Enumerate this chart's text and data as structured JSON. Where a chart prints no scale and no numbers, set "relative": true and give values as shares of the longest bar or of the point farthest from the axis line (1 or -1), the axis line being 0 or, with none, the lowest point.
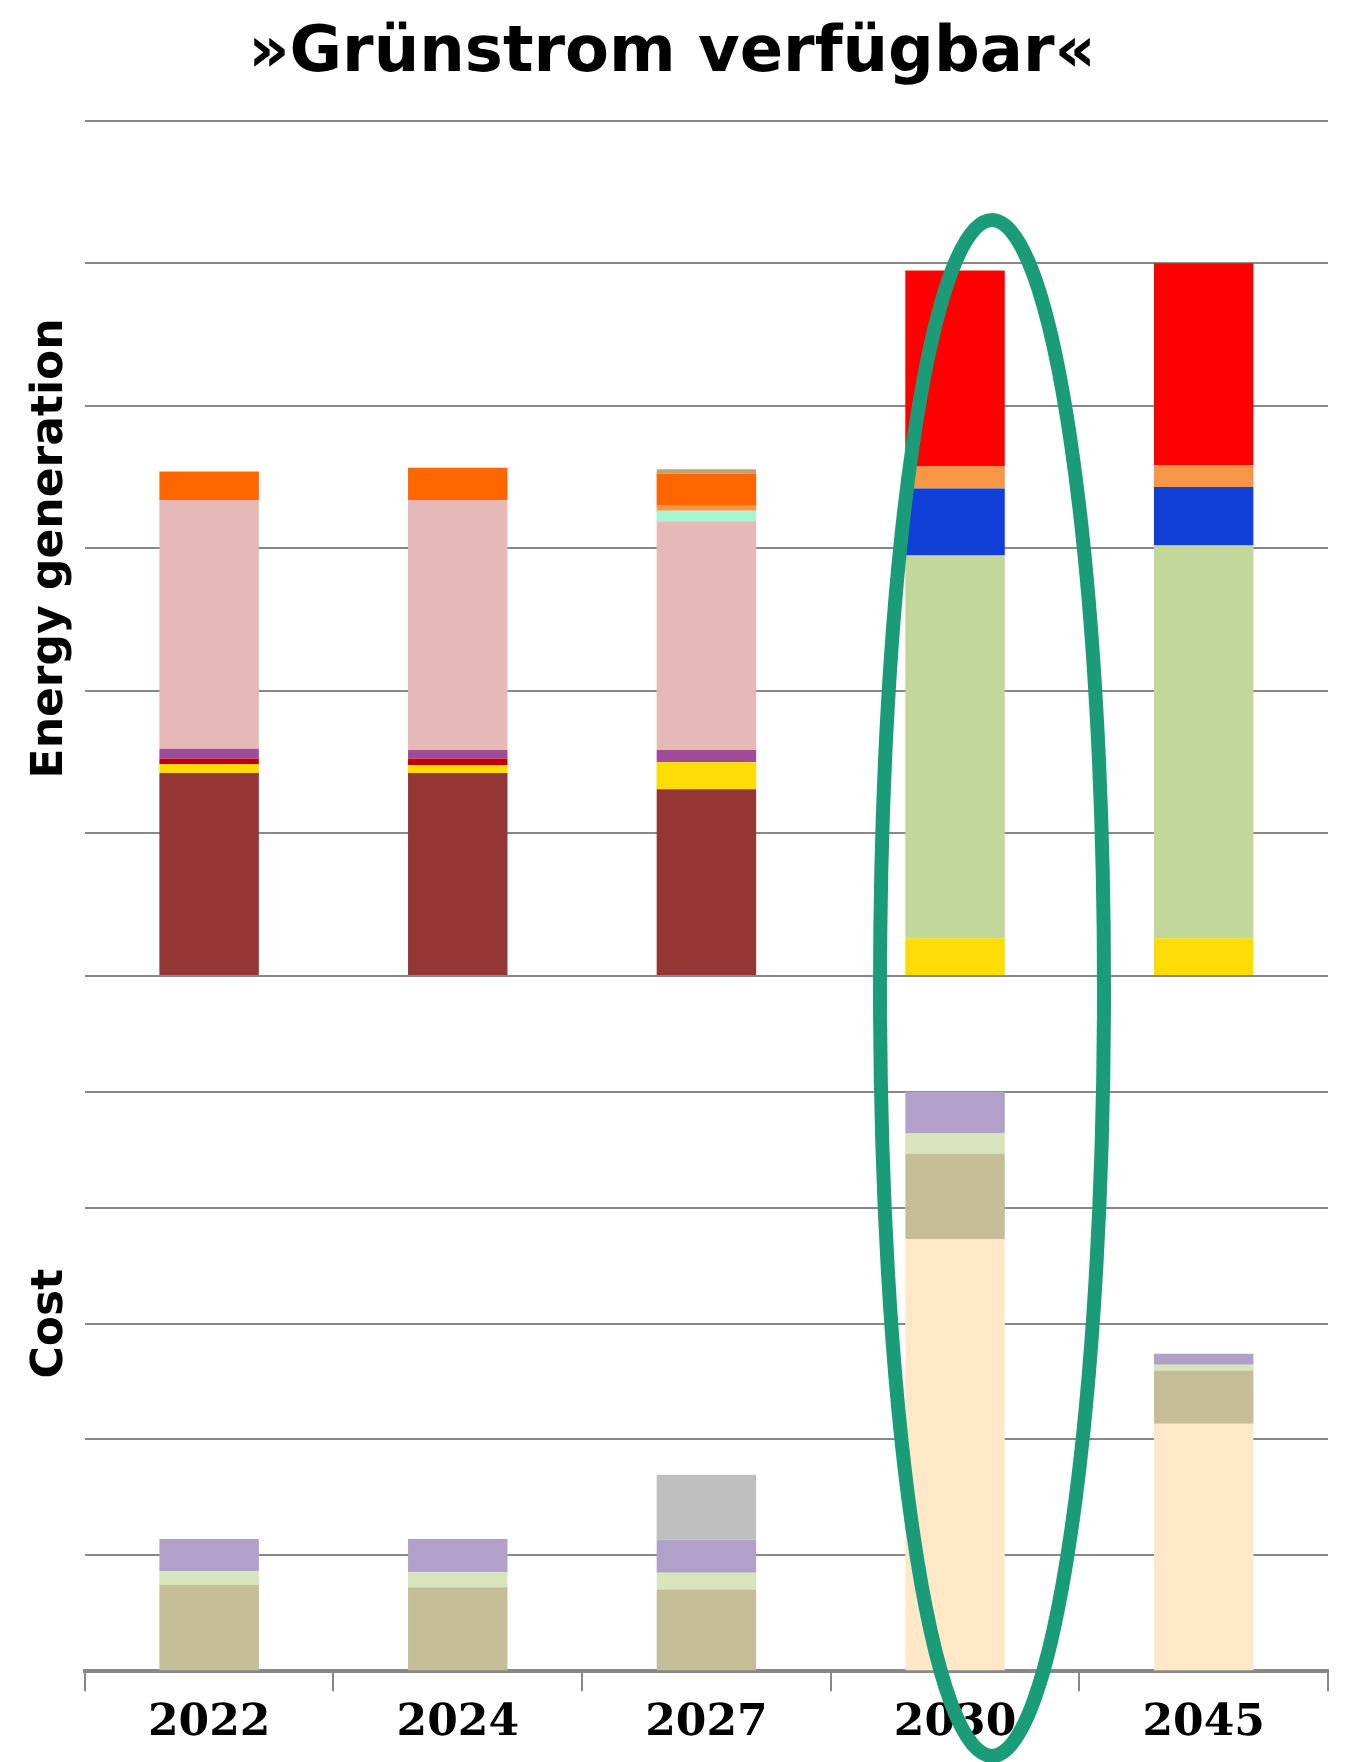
{
  "chart_data": [
    {
      "type": "bar",
      "title": "»Grünstrom verfügbar«",
      "ylabel": "Energy generation",
      "relative": true,
      "stacked": true,
      "grid": "y",
      "tick_labels": false,
      "categories": [
        "2022",
        "2024",
        "2027",
        "2030",
        "2045"
      ],
      "series": [
        {
          "color": "#943634",
          "values": [
            0.285,
            0.285,
            0.262,
            0,
            0
          ]
        },
        {
          "color": "#fcdc04",
          "values": [
            0.012,
            0.011,
            0.038,
            0.053,
            0.053
          ]
        },
        {
          "color": "#c00000",
          "values": [
            0.008,
            0.009,
            0,
            0,
            0
          ]
        },
        {
          "color": "#a04a9a",
          "values": [
            0.014,
            0.012,
            0.017,
            0,
            0
          ]
        },
        {
          "color": "#c4d79b",
          "values": [
            0,
            0,
            0,
            0.537,
            0.551
          ]
        },
        {
          "color": "#e6b8b7",
          "values": [
            0.349,
            0.351,
            0.321,
            0,
            0
          ]
        },
        {
          "color": "#a6f7d0",
          "values": [
            0,
            0,
            0.015,
            0,
            0
          ]
        },
        {
          "color": "#1040d8",
          "values": [
            0,
            0,
            0,
            0.094,
            0.082
          ]
        },
        {
          "color": "#f79646",
          "values": [
            0,
            0,
            0.007,
            0.031,
            0.031
          ]
        },
        {
          "color": "#ff6600",
          "values": [
            0.04,
            0.045,
            0.045,
            0,
            0
          ]
        },
        {
          "color": "#ff0000",
          "values": [
            0,
            0,
            0,
            0.275,
            0.283
          ]
        },
        {
          "color": "#c4a070",
          "values": [
            0,
            0,
            0.006,
            0,
            0
          ]
        }
      ]
    },
    {
      "type": "bar",
      "ylabel": "Cost",
      "relative": true,
      "stacked": true,
      "grid": "y",
      "tick_labels": "x",
      "categories": [
        "2022",
        "2024",
        "2027",
        "2030",
        "2045"
      ],
      "series": [
        {
          "color": "#ffe8c8",
          "values": [
            0,
            0,
            0,
            0.746,
            0.427
          ]
        },
        {
          "color": "#c4bd97",
          "values": [
            0.149,
            0.145,
            0.141,
            0.147,
            0.092
          ]
        },
        {
          "color": "#d8e4bc",
          "values": [
            0.024,
            0.026,
            0.029,
            0.035,
            0.01
          ]
        },
        {
          "color": "#b1a0c7",
          "values": [
            0.055,
            0.057,
            0.057,
            0.072,
            0.019
          ]
        },
        {
          "color": "#bfbfbf",
          "values": [
            0,
            0,
            0.112,
            0,
            0
          ]
        }
      ]
    }
  ]
}
